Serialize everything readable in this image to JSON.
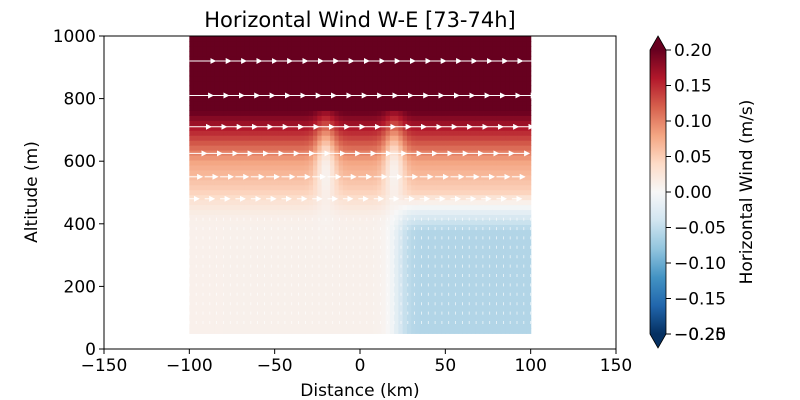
{
  "chart_data": {
    "type": "heatmap",
    "subtype": "filled-contour-with-wind-vectors",
    "title": "Horizontal Wind W-E [73-74h]",
    "xlabel": "Distance (km)",
    "ylabel": "Altitude (m)",
    "xlim": [
      -150,
      150
    ],
    "ylim": [
      0,
      1000
    ],
    "x_ticks": [
      "−150",
      "−100",
      "−50",
      "0",
      "50",
      "100",
      "150"
    ],
    "y_ticks": [
      "0",
      "200",
      "400",
      "600",
      "800",
      "1000"
    ],
    "data_extent": {
      "x": [
        -100,
        100
      ],
      "altitude": [
        50,
        1000
      ]
    },
    "colorbar": {
      "label": "Horizontal Wind (m/s)",
      "colormap": "RdBu_r",
      "range": [
        -0.2,
        0.2
      ],
      "extend": "both",
      "ticks": [
        "0.20",
        "0.15",
        "0.10",
        "0.05",
        "0.00",
        "−0.05",
        "−0.10",
        "−0.15",
        "−0.20",
        "−0.25"
      ]
    },
    "field_description": {
      "above_750m": 0.2,
      "at_600m": 0.08,
      "at_400m": 0.01,
      "lower_west_of_20km": 0.01,
      "lower_east_of_20km": -0.06,
      "updraft_gaps_at_km": [
        -20,
        20
      ]
    },
    "vector_rows": [
      {
        "altitude": 920,
        "direction": "east",
        "rel_length": 1.0
      },
      {
        "altitude": 810,
        "direction": "east",
        "rel_length": 0.9
      },
      {
        "altitude": 710,
        "direction": "east",
        "rel_length": 0.8
      },
      {
        "altitude": 625,
        "direction": "east",
        "rel_length": 0.6
      },
      {
        "altitude": 550,
        "direction": "east",
        "rel_length": 0.4
      },
      {
        "altitude": 480,
        "direction": "east",
        "rel_length": 0.25
      }
    ],
    "colors": {
      "strong_positive": "#67001f",
      "positive": "#d6604d",
      "neutral": "#f7f7f7",
      "negative": "#92c5de",
      "strong_negative": "#053061",
      "vectors": "#ffffff"
    },
    "grid": false
  }
}
